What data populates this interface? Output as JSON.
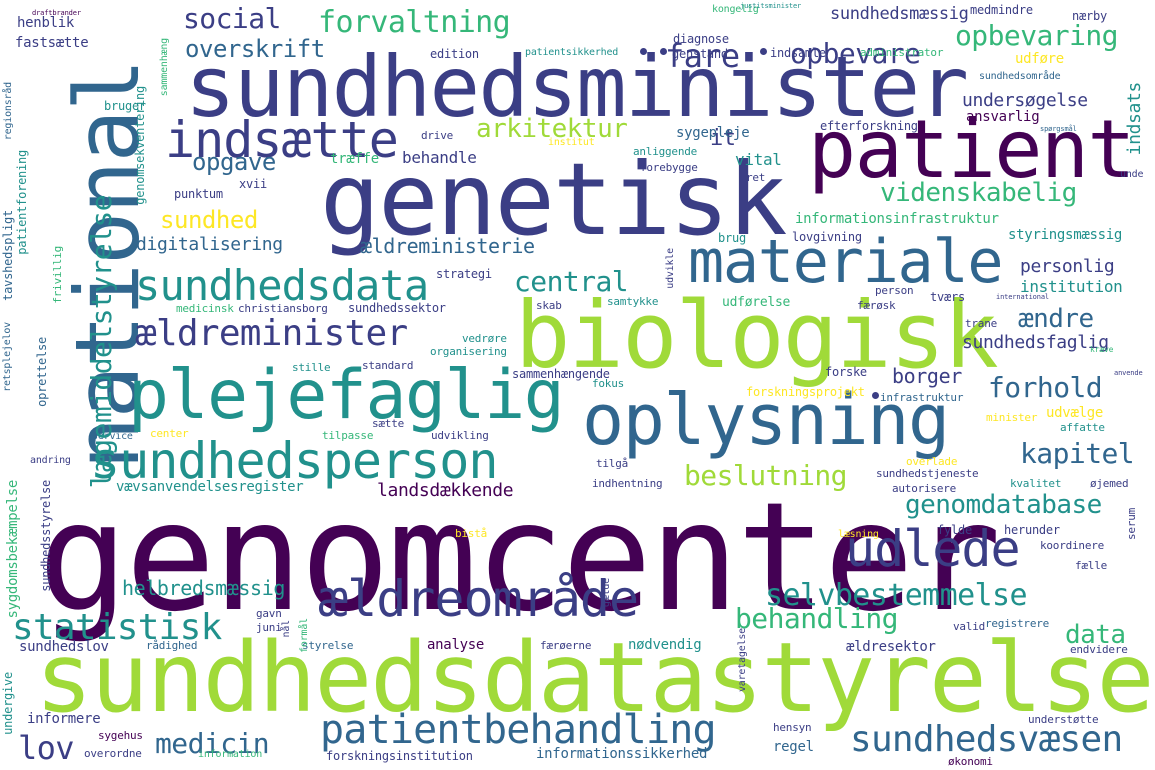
{
  "colors": {
    "dark_purple": "#440154",
    "indigo": "#3b3e85",
    "blue": "#31668e",
    "teal": "#21918c",
    "green": "#35b779",
    "lime": "#a0da39",
    "yellow": "#fde725"
  },
  "words": {
    "genomcenter": "genomcenter",
    "sundhedsdatastyrelse": "sundhedsdatastyrelse",
    "sundhedsminister": "sundhedsminister",
    "genetisk": "genetisk",
    "biologisk": "biologisk",
    "national": "national",
    "patient": "patient",
    "materiale": "materiale",
    "oplysning": "oplysning",
    "plejefaglig": "plejefaglig",
    "sundhedsperson": "sundhedsperson",
    "aeldreomraade": "ældreområde",
    "indsaette": "indsætte",
    "udlede": "udlede",
    "patientbehandling": "patientbehandling",
    "aeldreminister": "ældreminister",
    "sundhedsdata": "sundhedsdata",
    "sundhedsvaesen": "sundhedsvæsen",
    "selvbestemmelse": "selvbestemmelse",
    "statistisk": "statistisk",
    "laegemiddelstyrelse": "lægemiddelstyrelse",
    "behandling": "behandling",
    "medicin": "medicin",
    "beslutning": "beslutning",
    "forhold": "forhold",
    "kapitel": "kapitel",
    "genomdatabase": "genomdatabase",
    "fare": "fare",
    "social": "social",
    "forvaltning": "forvaltning",
    "opbevare": "opbevare",
    "opbevaring": "opbevaring",
    "overskrift": "overskrift",
    "arkitektur": "arkitektur",
    "opgave": "opgave",
    "sundhed": "sundhed",
    "videnskabelig": "videnskabelig",
    "central": "central",
    "lov": "lov",
    "data": "data",
    "aendre": "ændre",
    "digitalisering": "digitalisering",
    "aeldreministerie": "ældreministerie",
    "helbredsmaessig": "helbredsmæssig",
    "undersoegelse": "undersøgelse",
    "sundhedsfaglig": "sundhedsfaglig",
    "borger": "borger",
    "personlig": "personlig",
    "institution": "institution",
    "landsdaekkende": "landsdækkende",
    "vaevsanvendelsesregister": "vævsanvendelsesregister",
    "informationsinfrastruktur": "informationsinfrastruktur",
    "styringsmaessig": "styringsmæssig",
    "sundhedsmaessig": "sundhedsmæssig",
    "behandle": "behandle",
    "it": "it",
    "indsats": "indsats",
    "ansvarlig": "ansvarlig",
    "udfoere": "udføre",
    "henblik": "henblik",
    "fastsaette": "fastsætte",
    "edition": "edition",
    "patientsikkerhed": "patientsikkerhed",
    "diagnose": "diagnose",
    "kongelig": "kongelig",
    "genstand": "genstand",
    "indsamle": "indsamle",
    "administrator": "administrator",
    "medmindre": "medmindre",
    "naerby": "nærby",
    "sundhedsomraade": "sundhedsområde",
    "bruger": "bruger",
    "sygepleje": "sygepleje",
    "efterforskning": "efterforskning",
    "anliggende": "anliggende",
    "traeffe": "træffe",
    "vital": "vital",
    "forebygge": "forebygge",
    "ret": "ret",
    "xvii": "xvii",
    "punktum": "punktum",
    "brug": "brug",
    "lovgivning": "lovgivning",
    "strategi": "strategi",
    "udvikle": "udvikle",
    "person": "person",
    "tvaers": "tværs",
    "christiansborg": "christiansborg",
    "medicinsk": "medicinsk",
    "sundhedssektor": "sundhedssektor",
    "skab": "skab",
    "samtykke": "samtykke",
    "udfoerelse": "udførelse",
    "faeroesk": "færøsk",
    "trane": "trane",
    "vedroere": "vedrøre",
    "organisering": "organisering",
    "standard": "standard",
    "stille": "stille",
    "sammenhaengende": "sammenhængende",
    "forske": "forske",
    "fokus": "fokus",
    "forskningsprojekt": "forskningsprojekt",
    "infrastruktur": "infrastruktur",
    "minister": "minister",
    "udvaelge": "udvælge",
    "affatte": "affatte",
    "saette": "sætte",
    "service": "service",
    "center": "center",
    "tilpasse": "tilpasse",
    "udvikling": "udvikling",
    "tilgaa": "tilgå",
    "overlade": "overlade",
    "sundhedstjeneste": "sundhedstjeneste",
    "autorisere": "autorisere",
    "kvalitet": "kvalitet",
    "oejemed": "øjemed",
    "andring": "andring",
    "indhentning": "indhentning",
    "herunder": "herunder",
    "fylde": "fylde",
    "laesning": "læsning",
    "koordinere": "koordinere",
    "faelle": "fælle",
    "bistaa": "bistå",
    "gavn": "gavn",
    "juni": "juni",
    "styrelse": "styrelse",
    "valid": "valid",
    "registrere": "registrere",
    "sundhedslov": "sundhedslov",
    "raadighed": "rådighed",
    "analyse": "analyse",
    "faeroeerne": "færøerne",
    "noedvendig": "nødvendig",
    "aeldresektor": "ældresektor",
    "endvidere": "endvidere",
    "informere": "informere",
    "sygehus": "sygehus",
    "overordne": "overordne",
    "information": "information",
    "forskningsinstitution": "forskningsinstitution",
    "informationssikkerhed": "informationssikkerhed",
    "hensyn": "hensyn",
    "regel": "regel",
    "oekonomi": "økonomi",
    "understoette": "understøtte",
    "undergive": "undergive",
    "tavshedspligt": "tavshedspligt",
    "patientforening": "patientforening",
    "regionsraad": "regionsråd",
    "genomsekventering": "genomsekventering",
    "sundhedsstyrelse": "sundhedsstyrelse",
    "sygdomsbekaempelse": "sygdomsbekæmpelse",
    "retsplejelov": "retsplejelov",
    "oprettelse": "oprettelse",
    "frivillig": "frivillig",
    "drive": "drive",
    "institut": "institut",
    "unde": "unde",
    "kraeve": "kræve",
    "serum": "serum",
    "varetagelse": "varetagelse",
    "gaelde": "gælde",
    "formaal": "formål",
    "naal": "nål",
    "sammenhaeng": "sammenhæng",
    "justitsminister": "justitsminister",
    "anvende": "anvende",
    "draftbrander": "draftbrander",
    "spoergsmaal": "spørgsmål",
    "international": "international"
  }
}
